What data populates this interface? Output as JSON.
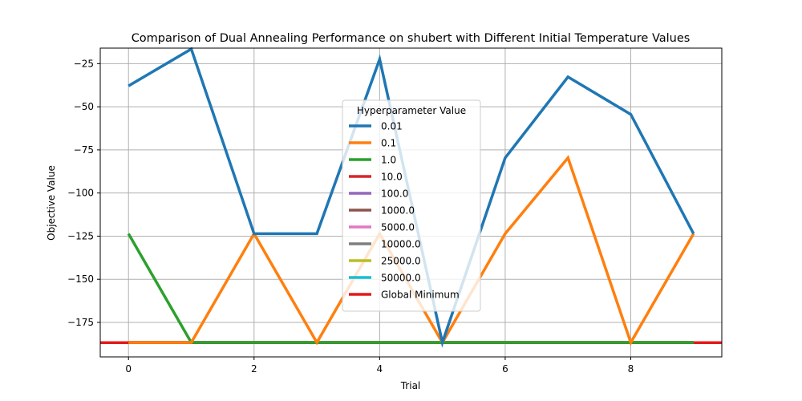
{
  "chart_data": {
    "type": "line",
    "title": "Comparison of Dual Annealing Performance on shubert with Different Initial Temperature Values",
    "xlabel": "Trial",
    "ylabel": "Objective Value",
    "xlim": [
      -0.45,
      9.45
    ],
    "ylim": [
      -195,
      -16
    ],
    "xticks": [
      0,
      2,
      4,
      6,
      8
    ],
    "yticks": [
      -175,
      -150,
      -125,
      -100,
      -75,
      -50,
      -25
    ],
    "grid": true,
    "legend": {
      "title": "Hyperparameter Value",
      "placement": "center"
    },
    "x": [
      0,
      1,
      2,
      3,
      4,
      5,
      6,
      7,
      8,
      9
    ],
    "series": [
      {
        "name": "0.01",
        "color": "#1f77b4",
        "values": [
          -37.9,
          -16.5,
          -123.6,
          -123.6,
          -22.4,
          -186.7,
          -79.6,
          -32.7,
          -54.4,
          -123.6
        ]
      },
      {
        "name": "0.1",
        "color": "#ff7f0e",
        "values": [
          -186.7,
          -186.7,
          -123.6,
          -186.7,
          -123.6,
          -186.7,
          -123.6,
          -79.6,
          -186.7,
          -123.6
        ]
      },
      {
        "name": "1.0",
        "color": "#2ca02c",
        "values": [
          -123.6,
          -186.7,
          -186.7,
          -186.7,
          -186.7,
          -186.7,
          -186.7,
          -186.7,
          -186.7,
          -186.7
        ]
      },
      {
        "name": "10.0",
        "color": "#d62728",
        "values": [
          -186.7,
          -186.7,
          -186.7,
          -186.7,
          -186.7,
          -186.7,
          -186.7,
          -186.7,
          -186.7,
          -186.7
        ]
      },
      {
        "name": "100.0",
        "color": "#9467bd",
        "values": [
          -186.7,
          -186.7,
          -186.7,
          -186.7,
          -186.7,
          -186.7,
          -186.7,
          -186.7,
          -186.7,
          -186.7
        ]
      },
      {
        "name": "1000.0",
        "color": "#8c564b",
        "values": [
          -186.7,
          -186.7,
          -186.7,
          -186.7,
          -186.7,
          -186.7,
          -186.7,
          -186.7,
          -186.7,
          -186.7
        ]
      },
      {
        "name": "5000.0",
        "color": "#e377c2",
        "values": [
          -186.7,
          -186.7,
          -186.7,
          -186.7,
          -186.7,
          -186.7,
          -186.7,
          -186.7,
          -186.7,
          -186.7
        ]
      },
      {
        "name": "10000.0",
        "color": "#7f7f7f",
        "values": [
          -186.7,
          -186.7,
          -186.7,
          -186.7,
          -186.7,
          -186.7,
          -186.7,
          -186.7,
          -186.7,
          -186.7
        ]
      },
      {
        "name": "25000.0",
        "color": "#bcbd22",
        "values": [
          -186.7,
          -186.7,
          -186.7,
          -186.7,
          -186.7,
          -186.7,
          -186.7,
          -186.7,
          -186.7,
          -186.7
        ]
      },
      {
        "name": "50000.0",
        "color": "#17becf",
        "values": [
          -186.7,
          -186.7,
          -186.7,
          -186.7,
          -186.7,
          -186.7,
          -186.7,
          -186.7,
          -186.7,
          -186.7
        ]
      }
    ],
    "hline": {
      "name": "Global Minimum",
      "value": -186.7309,
      "color": "#e31a1c"
    }
  }
}
